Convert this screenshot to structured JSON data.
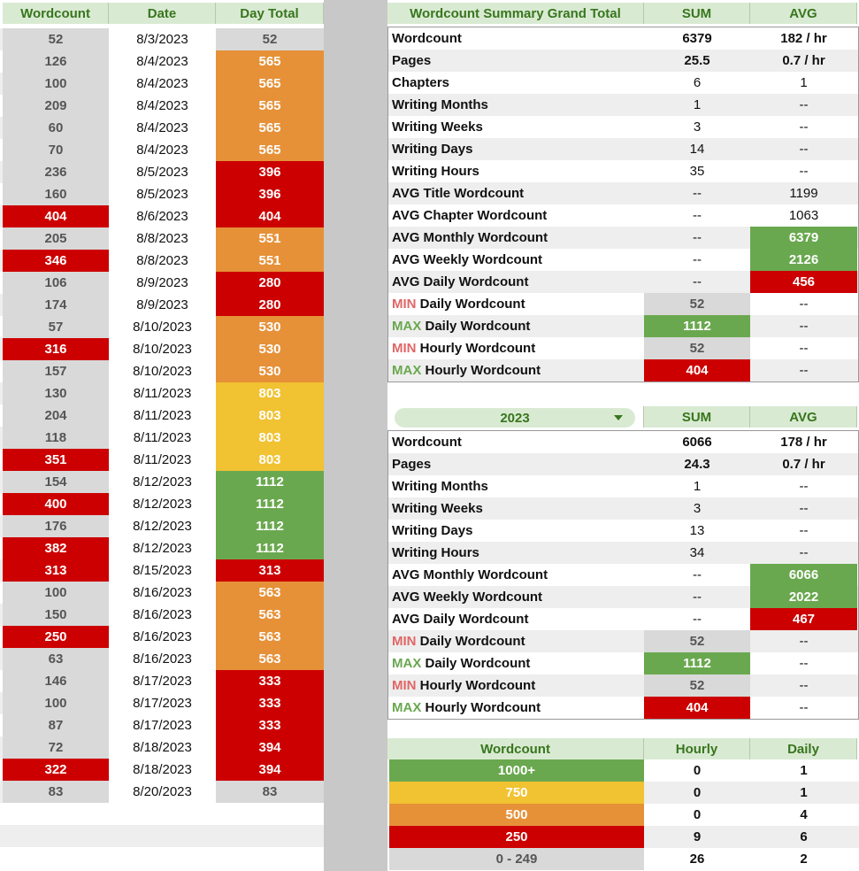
{
  "left": {
    "headers": [
      "Wordcount",
      "Date",
      "Day Total"
    ],
    "rows": [
      {
        "wc": "52",
        "date": "8/3/2023",
        "day": "52",
        "wcl": "gray",
        "dayl": "gray"
      },
      {
        "wc": "126",
        "date": "8/4/2023",
        "day": "565",
        "wcl": "gray",
        "dayl": "orange"
      },
      {
        "wc": "100",
        "date": "8/4/2023",
        "day": "565",
        "wcl": "gray",
        "dayl": "orange"
      },
      {
        "wc": "209",
        "date": "8/4/2023",
        "day": "565",
        "wcl": "gray",
        "dayl": "orange"
      },
      {
        "wc": "60",
        "date": "8/4/2023",
        "day": "565",
        "wcl": "gray",
        "dayl": "orange"
      },
      {
        "wc": "70",
        "date": "8/4/2023",
        "day": "565",
        "wcl": "gray",
        "dayl": "orange"
      },
      {
        "wc": "236",
        "date": "8/5/2023",
        "day": "396",
        "wcl": "gray",
        "dayl": "red"
      },
      {
        "wc": "160",
        "date": "8/5/2023",
        "day": "396",
        "wcl": "gray",
        "dayl": "red"
      },
      {
        "wc": "404",
        "date": "8/6/2023",
        "day": "404",
        "wcl": "red",
        "dayl": "red"
      },
      {
        "wc": "205",
        "date": "8/8/2023",
        "day": "551",
        "wcl": "gray",
        "dayl": "orange"
      },
      {
        "wc": "346",
        "date": "8/8/2023",
        "day": "551",
        "wcl": "red",
        "dayl": "orange"
      },
      {
        "wc": "106",
        "date": "8/9/2023",
        "day": "280",
        "wcl": "gray",
        "dayl": "red"
      },
      {
        "wc": "174",
        "date": "8/9/2023",
        "day": "280",
        "wcl": "gray",
        "dayl": "red"
      },
      {
        "wc": "57",
        "date": "8/10/2023",
        "day": "530",
        "wcl": "gray",
        "dayl": "orange"
      },
      {
        "wc": "316",
        "date": "8/10/2023",
        "day": "530",
        "wcl": "red",
        "dayl": "orange"
      },
      {
        "wc": "157",
        "date": "8/10/2023",
        "day": "530",
        "wcl": "gray",
        "dayl": "orange"
      },
      {
        "wc": "130",
        "date": "8/11/2023",
        "day": "803",
        "wcl": "gray",
        "dayl": "yellow"
      },
      {
        "wc": "204",
        "date": "8/11/2023",
        "day": "803",
        "wcl": "gray",
        "dayl": "yellow"
      },
      {
        "wc": "118",
        "date": "8/11/2023",
        "day": "803",
        "wcl": "gray",
        "dayl": "yellow"
      },
      {
        "wc": "351",
        "date": "8/11/2023",
        "day": "803",
        "wcl": "red",
        "dayl": "yellow"
      },
      {
        "wc": "154",
        "date": "8/12/2023",
        "day": "1112",
        "wcl": "gray",
        "dayl": "green"
      },
      {
        "wc": "400",
        "date": "8/12/2023",
        "day": "1112",
        "wcl": "red",
        "dayl": "green"
      },
      {
        "wc": "176",
        "date": "8/12/2023",
        "day": "1112",
        "wcl": "gray",
        "dayl": "green"
      },
      {
        "wc": "382",
        "date": "8/12/2023",
        "day": "1112",
        "wcl": "red",
        "dayl": "green"
      },
      {
        "wc": "313",
        "date": "8/15/2023",
        "day": "313",
        "wcl": "red",
        "dayl": "red"
      },
      {
        "wc": "100",
        "date": "8/16/2023",
        "day": "563",
        "wcl": "gray",
        "dayl": "orange"
      },
      {
        "wc": "150",
        "date": "8/16/2023",
        "day": "563",
        "wcl": "gray",
        "dayl": "orange"
      },
      {
        "wc": "250",
        "date": "8/16/2023",
        "day": "563",
        "wcl": "red",
        "dayl": "orange"
      },
      {
        "wc": "63",
        "date": "8/16/2023",
        "day": "563",
        "wcl": "gray",
        "dayl": "orange"
      },
      {
        "wc": "146",
        "date": "8/17/2023",
        "day": "333",
        "wcl": "gray",
        "dayl": "red"
      },
      {
        "wc": "100",
        "date": "8/17/2023",
        "day": "333",
        "wcl": "gray",
        "dayl": "red"
      },
      {
        "wc": "87",
        "date": "8/17/2023",
        "day": "333",
        "wcl": "gray",
        "dayl": "red"
      },
      {
        "wc": "72",
        "date": "8/18/2023",
        "day": "394",
        "wcl": "gray",
        "dayl": "red"
      },
      {
        "wc": "322",
        "date": "8/18/2023",
        "day": "394",
        "wcl": "red",
        "dayl": "red"
      },
      {
        "wc": "83",
        "date": "8/20/2023",
        "day": "83",
        "wcl": "gray",
        "dayl": "gray"
      }
    ]
  },
  "summary": {
    "headers": [
      "Wordcount Summary Grand Total",
      "SUM",
      "AVG"
    ],
    "rows": [
      {
        "tag": "",
        "label": "Wordcount",
        "sum": "6379",
        "avg": "182 / hr",
        "bold": true
      },
      {
        "tag": "",
        "label": "Pages",
        "sum": "25.5",
        "avg": "0.7 / hr",
        "bold": true
      },
      {
        "tag": "",
        "label": "Chapters",
        "sum": "6",
        "avg": "1"
      },
      {
        "tag": "",
        "label": "Writing Months",
        "sum": "1",
        "avg": "--"
      },
      {
        "tag": "",
        "label": "Writing Weeks",
        "sum": "3",
        "avg": "--"
      },
      {
        "tag": "",
        "label": "Writing Days",
        "sum": "14",
        "avg": "--"
      },
      {
        "tag": "",
        "label": "Writing Hours",
        "sum": "35",
        "avg": "--"
      },
      {
        "tag": "",
        "label": "AVG Title Wordcount",
        "sum": "--",
        "avg": "1199"
      },
      {
        "tag": "",
        "label": "AVG Chapter Wordcount",
        "sum": "--",
        "avg": "1063"
      },
      {
        "tag": "",
        "label": "AVG Monthly Wordcount",
        "sum": "--",
        "avg": "6379",
        "avgl": "green"
      },
      {
        "tag": "",
        "label": "AVG Weekly Wordcount",
        "sum": "--",
        "avg": "2126",
        "avgl": "green"
      },
      {
        "tag": "",
        "label": "AVG Daily Wordcount",
        "sum": "--",
        "avg": "456",
        "avgl": "red"
      },
      {
        "tag": "MIN",
        "label": " Daily Wordcount",
        "sum": "52",
        "avg": "--",
        "suml": "gray"
      },
      {
        "tag": "MAX",
        "label": " Daily Wordcount",
        "sum": "1112",
        "avg": "--",
        "suml": "green"
      },
      {
        "tag": "MIN",
        "label": " Hourly Wordcount",
        "sum": "52",
        "avg": "--",
        "suml": "gray"
      },
      {
        "tag": "MAX",
        "label": " Hourly Wordcount",
        "sum": "404",
        "avg": "--",
        "suml": "red"
      }
    ]
  },
  "year": {
    "selected": "2023",
    "headers": [
      "SUM",
      "AVG"
    ],
    "rows": [
      {
        "tag": "",
        "label": "Wordcount",
        "sum": "6066",
        "avg": "178 / hr",
        "bold": true
      },
      {
        "tag": "",
        "label": "Pages",
        "sum": "24.3",
        "avg": "0.7 / hr",
        "bold": true
      },
      {
        "tag": "",
        "label": "Writing Months",
        "sum": "1",
        "avg": "--"
      },
      {
        "tag": "",
        "label": "Writing Weeks",
        "sum": "3",
        "avg": "--"
      },
      {
        "tag": "",
        "label": "Writing Days",
        "sum": "13",
        "avg": "--"
      },
      {
        "tag": "",
        "label": "Writing Hours",
        "sum": "34",
        "avg": "--"
      },
      {
        "tag": "",
        "label": "AVG Monthly Wordcount",
        "sum": "--",
        "avg": "6066",
        "avgl": "green"
      },
      {
        "tag": "",
        "label": "AVG Weekly Wordcount",
        "sum": "--",
        "avg": "2022",
        "avgl": "green"
      },
      {
        "tag": "",
        "label": "AVG Daily Wordcount",
        "sum": "--",
        "avg": "467",
        "avgl": "red"
      },
      {
        "tag": "MIN",
        "label": " Daily Wordcount",
        "sum": "52",
        "avg": "--",
        "suml": "gray"
      },
      {
        "tag": "MAX",
        "label": " Daily Wordcount",
        "sum": "1112",
        "avg": "--",
        "suml": "green"
      },
      {
        "tag": "MIN",
        "label": " Hourly Wordcount",
        "sum": "52",
        "avg": "--",
        "suml": "gray"
      },
      {
        "tag": "MAX",
        "label": " Hourly Wordcount",
        "sum": "404",
        "avg": "--",
        "suml": "red"
      }
    ]
  },
  "legend": {
    "headers": [
      "Wordcount",
      "Hourly",
      "Daily"
    ],
    "rows": [
      {
        "level": "1000+",
        "hourly": "0",
        "daily": "1",
        "lvl": "green"
      },
      {
        "level": "750",
        "hourly": "0",
        "daily": "1",
        "lvl": "yellow"
      },
      {
        "level": "500",
        "hourly": "0",
        "daily": "4",
        "lvl": "orange"
      },
      {
        "level": "250",
        "hourly": "9",
        "daily": "6",
        "lvl": "red"
      },
      {
        "level": "0 - 249",
        "hourly": "26",
        "daily": "2",
        "lvl": "gray"
      }
    ]
  },
  "colors": {
    "header_bg": "#d9ead3",
    "header_text": "#38761d",
    "gray": "#d9d9d9",
    "red": "#cc0000",
    "orange": "#e69138",
    "yellow": "#f1c232",
    "green": "#6aa84f",
    "min_tag": "#e06666",
    "max_tag": "#6aa84f"
  },
  "icons": {
    "dropdown": "chevron-down-icon"
  }
}
